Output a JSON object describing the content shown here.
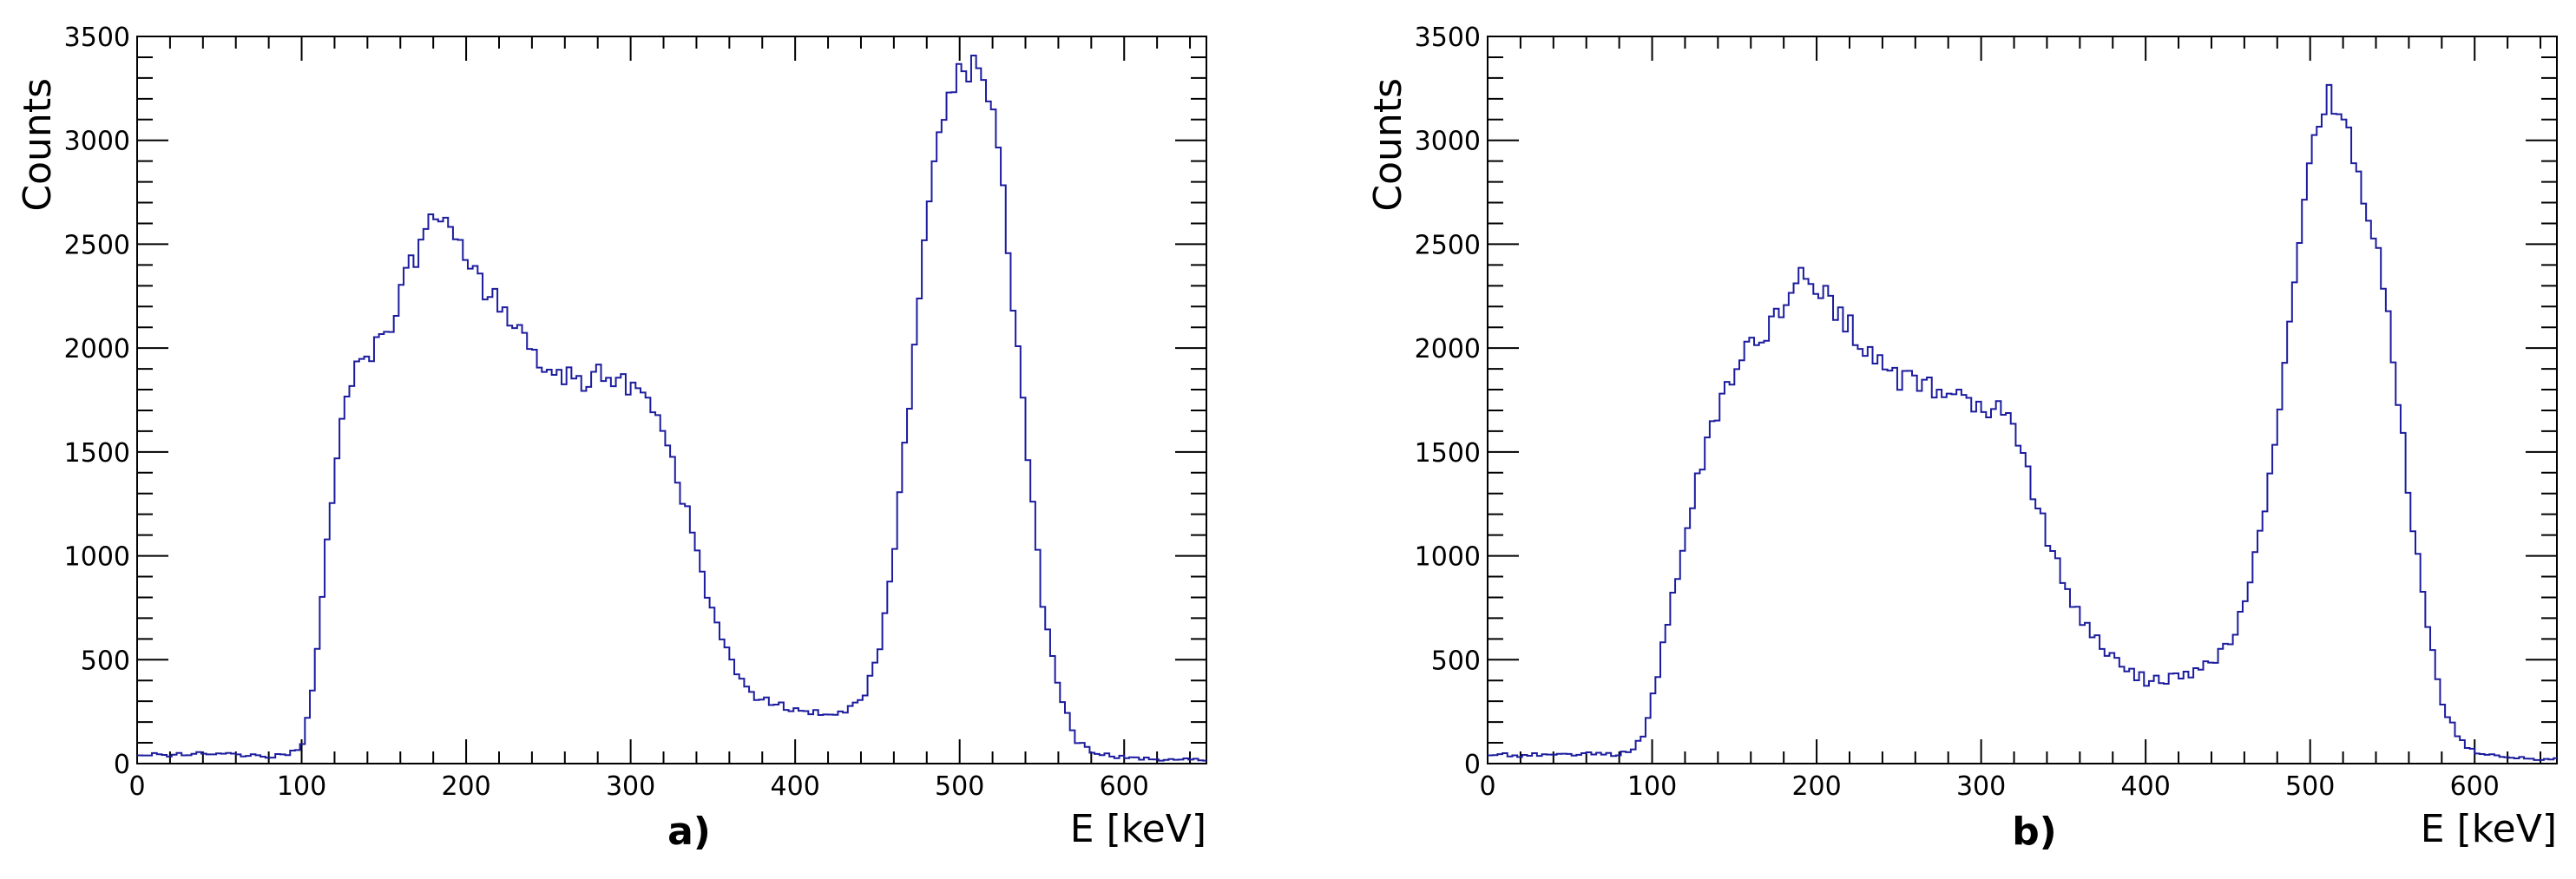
{
  "chart_data": [
    {
      "type": "histogram",
      "panel_label": "a)",
      "xlabel": "E [keV]",
      "ylabel": "Counts",
      "xlim": [
        0,
        650
      ],
      "ylim": [
        0,
        3500
      ],
      "x_ticks": [
        "0",
        "100",
        "200",
        "300",
        "400",
        "500",
        "600"
      ],
      "y_ticks": [
        "0",
        "500",
        "1000",
        "1500",
        "2000",
        "2500",
        "3000",
        "3500"
      ],
      "color": "#1c1c9e",
      "x": [
        0,
        20,
        40,
        60,
        80,
        90,
        100,
        105,
        110,
        115,
        120,
        125,
        130,
        140,
        150,
        160,
        170,
        180,
        185,
        190,
        195,
        200,
        210,
        220,
        230,
        240,
        250,
        260,
        270,
        280,
        290,
        300,
        310,
        320,
        330,
        340,
        350,
        360,
        370,
        380,
        390,
        400,
        410,
        420,
        430,
        440,
        450,
        460,
        470,
        480,
        490,
        500,
        505,
        510,
        515,
        520,
        525,
        530,
        540,
        550,
        560,
        570,
        580,
        590,
        600,
        610,
        620,
        630,
        640,
        650
      ],
      "values": [
        50,
        40,
        55,
        40,
        35,
        40,
        90,
        250,
        600,
        1000,
        1400,
        1650,
        1850,
        1950,
        2050,
        2250,
        2450,
        2600,
        2560,
        2620,
        2540,
        2420,
        2300,
        2200,
        2100,
        2000,
        1900,
        1860,
        1850,
        1870,
        1860,
        1820,
        1800,
        1650,
        1350,
        1000,
        700,
        500,
        380,
        300,
        280,
        260,
        250,
        240,
        260,
        300,
        500,
        1000,
        1800,
        2600,
        3100,
        3300,
        3330,
        3340,
        3300,
        3200,
        2900,
        2400,
        1600,
        800,
        350,
        120,
        60,
        40,
        30,
        25,
        20,
        20,
        20,
        20
      ]
    },
    {
      "type": "histogram",
      "panel_label": "b)",
      "xlabel": "E [keV]",
      "ylabel": "Counts",
      "xlim": [
        0,
        650
      ],
      "ylim": [
        0,
        3500
      ],
      "x_ticks": [
        "0",
        "100",
        "200",
        "300",
        "400",
        "500",
        "600"
      ],
      "y_ticks": [
        "0",
        "500",
        "1000",
        "1500",
        "2000",
        "2500",
        "3000",
        "3500"
      ],
      "color": "#1c1c9e",
      "x": [
        0,
        20,
        40,
        60,
        70,
        80,
        90,
        95,
        100,
        110,
        120,
        130,
        140,
        150,
        160,
        170,
        180,
        190,
        200,
        210,
        220,
        230,
        240,
        250,
        260,
        270,
        280,
        290,
        300,
        310,
        320,
        330,
        340,
        350,
        360,
        370,
        380,
        390,
        400,
        410,
        420,
        430,
        440,
        450,
        460,
        470,
        480,
        490,
        500,
        505,
        510,
        515,
        520,
        530,
        540,
        550,
        560,
        570,
        580,
        590,
        600,
        610,
        620,
        630,
        640,
        650
      ],
      "values": [
        50,
        40,
        45,
        50,
        50,
        40,
        80,
        150,
        300,
        700,
        1100,
        1450,
        1700,
        1880,
        2000,
        2100,
        2200,
        2320,
        2300,
        2200,
        2100,
        2000,
        1930,
        1860,
        1830,
        1800,
        1780,
        1750,
        1720,
        1700,
        1600,
        1350,
        1100,
        900,
        700,
        600,
        520,
        450,
        400,
        410,
        420,
        430,
        480,
        560,
        750,
        1100,
        1650,
        2300,
        2900,
        3100,
        3200,
        3200,
        3150,
        2850,
        2500,
        2000,
        1300,
        700,
        300,
        120,
        60,
        40,
        30,
        25,
        20,
        20
      ]
    }
  ]
}
